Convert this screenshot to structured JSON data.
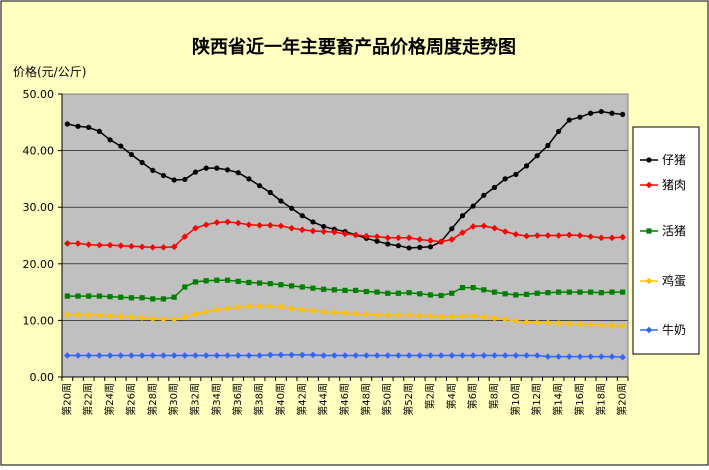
{
  "chart_data": {
    "type": "line",
    "title": "陕西省近一年主要畜产品价格周度走势图",
    "ylabel": "价格(元/公斤)",
    "xlabel": "",
    "ylim": [
      0,
      50
    ],
    "yticks": [
      "0.00",
      "10.00",
      "20.00",
      "30.00",
      "40.00",
      "50.00"
    ],
    "grid": true,
    "legend_position": "right",
    "x": [
      "第20周",
      "第21周",
      "第22周",
      "第23周",
      "第24周",
      "第25周",
      "第26周",
      "第27周",
      "第28周",
      "第29周",
      "第30周",
      "第31周",
      "第32周",
      "第33周",
      "第34周",
      "第35周",
      "第36周",
      "第37周",
      "第38周",
      "第39周",
      "第40周",
      "第41周",
      "第42周",
      "第43周",
      "第44周",
      "第45周",
      "第46周",
      "第47周",
      "第48周",
      "第49周",
      "第50周",
      "第51周",
      "第52周",
      "第1周",
      "第2周",
      "第3周",
      "第4周",
      "第5周",
      "第6周",
      "第7周",
      "第8周",
      "第9周",
      "第10周",
      "第11周",
      "第12周",
      "第13周",
      "第14周",
      "第15周",
      "第16周",
      "第17周",
      "第18周",
      "第19周",
      "第20周"
    ],
    "tick_labels": [
      "第20周",
      "第22周",
      "第24周",
      "第26周",
      "第28周",
      "第30周",
      "第32周",
      "第34周",
      "第36周",
      "第38周",
      "第40周",
      "第42周",
      "第44周",
      "第46周",
      "第48周",
      "第50周",
      "第52周",
      "第2周",
      "第4周",
      "第6周",
      "第8周",
      "第10周",
      "第12周",
      "第14周",
      "第16周",
      "第18周",
      "第20周"
    ],
    "series": [
      {
        "name": "仔猪",
        "color": "#000000",
        "marker": "circle",
        "values": [
          44.7,
          44.3,
          44.1,
          43.4,
          41.9,
          40.8,
          39.3,
          37.9,
          36.5,
          35.6,
          34.8,
          34.9,
          36.2,
          36.9,
          36.9,
          36.6,
          36.1,
          35.0,
          33.8,
          32.6,
          31.1,
          29.8,
          28.5,
          27.4,
          26.6,
          26.1,
          25.7,
          25.1,
          24.5,
          24.0,
          23.5,
          23.2,
          22.8,
          22.9,
          23.0,
          23.9,
          26.2,
          28.5,
          30.2,
          32.1,
          33.5,
          35.0,
          35.8,
          37.3,
          39.1,
          40.9,
          43.4,
          45.4,
          45.9,
          46.6,
          46.9,
          46.6,
          46.4
        ]
      },
      {
        "name": "猪肉",
        "color": "#ff0000",
        "marker": "diamond",
        "values": [
          23.6,
          23.6,
          23.4,
          23.3,
          23.3,
          23.2,
          23.1,
          23.0,
          22.9,
          22.9,
          23.0,
          24.8,
          26.3,
          26.9,
          27.3,
          27.4,
          27.2,
          26.9,
          26.8,
          26.8,
          26.7,
          26.3,
          26.0,
          25.8,
          25.7,
          25.6,
          25.3,
          25.1,
          24.9,
          24.8,
          24.6,
          24.6,
          24.6,
          24.3,
          24.1,
          23.9,
          24.3,
          25.5,
          26.6,
          26.7,
          26.3,
          25.7,
          25.2,
          24.9,
          25.0,
          25.0,
          25.0,
          25.1,
          25.0,
          24.8,
          24.6,
          24.6,
          24.7
        ]
      },
      {
        "name": "活猪",
        "color": "#008000",
        "marker": "square",
        "values": [
          14.3,
          14.3,
          14.3,
          14.3,
          14.2,
          14.1,
          14.0,
          14.0,
          13.8,
          13.8,
          14.1,
          15.9,
          16.8,
          17.0,
          17.1,
          17.1,
          16.9,
          16.7,
          16.6,
          16.5,
          16.3,
          16.1,
          15.9,
          15.7,
          15.5,
          15.4,
          15.3,
          15.3,
          15.1,
          15.0,
          14.8,
          14.8,
          14.9,
          14.7,
          14.5,
          14.4,
          14.8,
          15.8,
          15.8,
          15.4,
          15.0,
          14.7,
          14.5,
          14.6,
          14.8,
          14.9,
          15.0,
          15.0,
          15.0,
          15.0,
          14.9,
          15.0,
          15.0
        ]
      },
      {
        "name": "鸡蛋",
        "color": "#ffc000",
        "marker": "diamond",
        "values": [
          11.0,
          11.0,
          10.9,
          10.9,
          10.8,
          10.7,
          10.6,
          10.5,
          10.3,
          10.2,
          10.2,
          10.6,
          11.1,
          11.5,
          11.9,
          12.1,
          12.3,
          12.5,
          12.5,
          12.5,
          12.4,
          12.1,
          11.9,
          11.7,
          11.5,
          11.4,
          11.3,
          11.2,
          11.1,
          11.0,
          10.9,
          10.9,
          10.9,
          10.8,
          10.8,
          10.7,
          10.7,
          10.8,
          10.8,
          10.6,
          10.4,
          10.2,
          9.9,
          9.7,
          9.6,
          9.6,
          9.5,
          9.4,
          9.4,
          9.3,
          9.1,
          9.1,
          9.0
        ]
      },
      {
        "name": "牛奶",
        "color": "#3366ff",
        "marker": "diamond",
        "values": [
          3.8,
          3.8,
          3.8,
          3.8,
          3.8,
          3.8,
          3.8,
          3.8,
          3.8,
          3.8,
          3.8,
          3.8,
          3.8,
          3.8,
          3.8,
          3.8,
          3.8,
          3.8,
          3.8,
          3.9,
          3.9,
          3.9,
          3.9,
          3.9,
          3.8,
          3.8,
          3.8,
          3.8,
          3.8,
          3.8,
          3.8,
          3.8,
          3.8,
          3.8,
          3.8,
          3.8,
          3.8,
          3.8,
          3.8,
          3.8,
          3.8,
          3.8,
          3.8,
          3.8,
          3.8,
          3.6,
          3.6,
          3.6,
          3.6,
          3.6,
          3.6,
          3.6,
          3.5
        ]
      }
    ]
  },
  "colors": {
    "background": "#ffffc0",
    "plot_area": "#c0c0c0",
    "legend_background": "#ffffff"
  }
}
